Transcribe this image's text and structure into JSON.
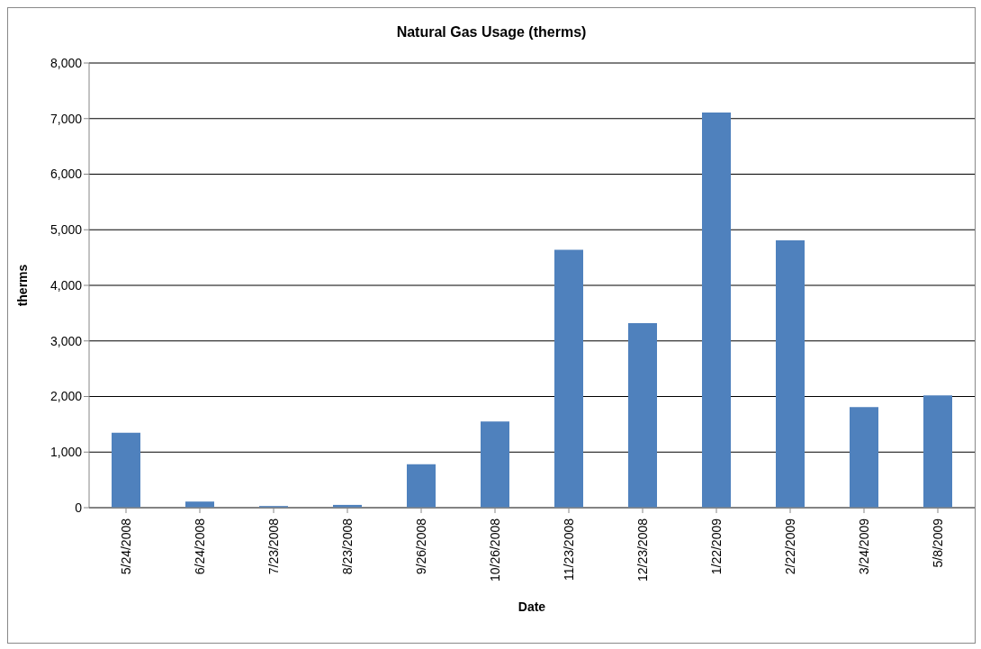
{
  "chart_data": {
    "type": "bar",
    "title": "Natural Gas Usage (therms)",
    "xlabel": "Date",
    "ylabel": "therms",
    "categories": [
      "5/24/2008",
      "6/24/2008",
      "7/23/2008",
      "8/23/2008",
      "9/26/2008",
      "10/26/2008",
      "11/23/2008",
      "12/23/2008",
      "1/22/2009",
      "2/22/2009",
      "3/24/2009",
      "5/8/2009"
    ],
    "values": [
      1350,
      110,
      30,
      50,
      780,
      1550,
      4640,
      3320,
      7110,
      4810,
      1810,
      2020
    ],
    "color": "#4f81bd",
    "ylim": [
      0,
      8000
    ],
    "yticks": [
      {
        "value": 0,
        "label": "0"
      },
      {
        "value": 1000,
        "label": "1,000"
      },
      {
        "value": 2000,
        "label": "2,000"
      },
      {
        "value": 3000,
        "label": "3,000"
      },
      {
        "value": 4000,
        "label": "4,000"
      },
      {
        "value": 5000,
        "label": "5,000"
      },
      {
        "value": 6000,
        "label": "6,000"
      },
      {
        "value": 7000,
        "label": "7,000"
      },
      {
        "value": 8000,
        "label": "8,000"
      }
    ],
    "grid": "y",
    "legend": false
  }
}
